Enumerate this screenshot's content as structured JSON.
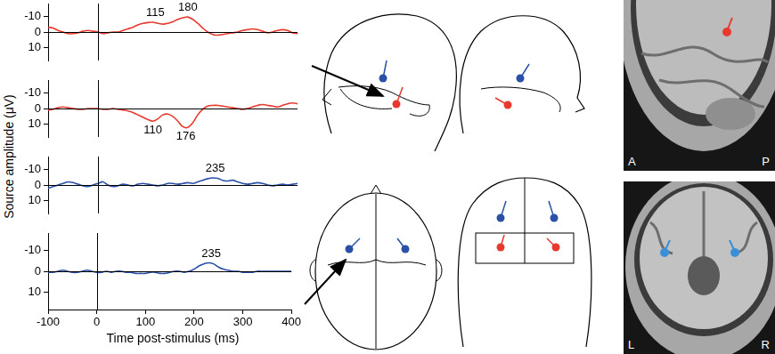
{
  "chart_data": [
    {
      "type": "line",
      "color": "#e8392f",
      "x": [
        -100,
        -90,
        -80,
        -70,
        -60,
        -50,
        -40,
        -30,
        -20,
        -10,
        0,
        10,
        20,
        30,
        40,
        50,
        60,
        70,
        80,
        90,
        100,
        110,
        120,
        130,
        140,
        150,
        160,
        170,
        180,
        190,
        200,
        210,
        220,
        230,
        240,
        250,
        260,
        270,
        280,
        290,
        300,
        310,
        320,
        330,
        340,
        350,
        360,
        370,
        380,
        390,
        400
      ],
      "values": [
        -3,
        -2.5,
        -1,
        0,
        1,
        1,
        0.5,
        -0.5,
        -1,
        -0.5,
        0,
        1,
        0.5,
        0,
        0,
        -1,
        -2,
        -3,
        -4.5,
        -5.5,
        -6,
        -6.2,
        -5.5,
        -5,
        -5.5,
        -6.5,
        -8,
        -9,
        -9.5,
        -8,
        -5.5,
        -2.5,
        0,
        1.5,
        2,
        1.5,
        1,
        0.5,
        0,
        -1,
        -1.5,
        -2,
        -1.5,
        -0.5,
        0.5,
        0,
        -1,
        -1.5,
        -1,
        0.5,
        1
      ],
      "xlim": [
        -100,
        400
      ],
      "xticks": [
        -100,
        0,
        100,
        200,
        300,
        400
      ],
      "ylim": [
        -18,
        18
      ],
      "yticks": [
        -10,
        0,
        10
      ],
      "tick_labels": "y",
      "annotations": [
        {
          "text": "115",
          "x": 115,
          "y": -6.2
        },
        {
          "text": "180",
          "x": 180,
          "y": -9.5
        }
      ]
    },
    {
      "type": "line",
      "color": "#e8392f",
      "x": [
        -100,
        -90,
        -80,
        -70,
        -60,
        -50,
        -40,
        -30,
        -20,
        -10,
        0,
        10,
        20,
        30,
        40,
        50,
        60,
        70,
        80,
        90,
        100,
        110,
        120,
        130,
        140,
        150,
        160,
        170,
        180,
        190,
        200,
        210,
        220,
        230,
        240,
        250,
        260,
        270,
        280,
        290,
        300,
        310,
        320,
        330,
        340,
        350,
        360,
        370,
        380,
        390,
        400
      ],
      "values": [
        1,
        0.5,
        -0.5,
        -1,
        -0.5,
        0,
        0.5,
        0.5,
        0,
        0,
        0,
        0.5,
        0.5,
        0,
        0.5,
        1,
        1.5,
        2.5,
        4,
        5.5,
        7,
        8,
        6.5,
        4,
        3.5,
        5,
        8,
        11.5,
        12,
        9,
        4,
        0.5,
        -1.5,
        -2,
        -2,
        -1.5,
        -1,
        -0.5,
        0,
        0.5,
        0,
        -1,
        -2,
        -2.5,
        -2,
        -1.5,
        -1,
        -2,
        -3,
        -3.5,
        -3
      ],
      "xlim": [
        -100,
        400
      ],
      "xticks": [
        -100,
        0,
        100,
        200,
        300,
        400
      ],
      "ylim": [
        -18,
        18
      ],
      "yticks": [
        -10,
        0,
        10
      ],
      "tick_labels": "y",
      "annotations": [
        {
          "text": "110",
          "x": 110,
          "y": 8
        },
        {
          "text": "176",
          "x": 176,
          "y": 12
        }
      ]
    },
    {
      "type": "line",
      "color": "#2a50a8",
      "x": [
        -100,
        -90,
        -80,
        -70,
        -60,
        -50,
        -40,
        -30,
        -20,
        -10,
        0,
        10,
        20,
        30,
        40,
        50,
        60,
        70,
        80,
        90,
        100,
        110,
        120,
        130,
        140,
        150,
        160,
        170,
        180,
        190,
        200,
        210,
        220,
        230,
        240,
        250,
        260,
        270,
        280,
        290,
        300,
        310,
        320,
        330,
        340,
        350,
        360,
        370,
        380,
        390,
        400
      ],
      "values": [
        2,
        1,
        0,
        -1,
        -2,
        -1.5,
        -0.5,
        0.5,
        1,
        0,
        -1,
        -2,
        0,
        1,
        0.5,
        -0.5,
        0,
        0.5,
        -0.5,
        -1,
        -0.5,
        0,
        0.5,
        0,
        -1,
        -1,
        -0.5,
        -1,
        -1.5,
        -1,
        -2,
        -3,
        -4,
        -4.5,
        -4.2,
        -3,
        -2.5,
        -3,
        -2,
        -1,
        -0.5,
        -1,
        -1.5,
        -1,
        0,
        0.5,
        0,
        -0.5,
        0,
        -0.5,
        -1
      ],
      "xlim": [
        -100,
        400
      ],
      "xticks": [
        -100,
        0,
        100,
        200,
        300,
        400
      ],
      "ylim": [
        -18,
        18
      ],
      "yticks": [
        -10,
        0,
        10
      ],
      "tick_labels": "y",
      "annotations": [
        {
          "text": "235",
          "x": 235,
          "y": -4.5
        }
      ]
    },
    {
      "type": "line",
      "color": "#2a50a8",
      "x": [
        -100,
        -90,
        -80,
        -70,
        -60,
        -50,
        -40,
        -30,
        -20,
        -10,
        0,
        10,
        20,
        30,
        40,
        50,
        60,
        70,
        80,
        90,
        100,
        110,
        120,
        130,
        140,
        150,
        160,
        170,
        180,
        190,
        200,
        210,
        220,
        230,
        240,
        250,
        260,
        270,
        280,
        290,
        300,
        310,
        320,
        330,
        340,
        350,
        360,
        370,
        380,
        390,
        400
      ],
      "values": [
        0.5,
        0.5,
        0,
        -0.5,
        0,
        0.5,
        0.5,
        0,
        -0.5,
        0,
        0.5,
        0.5,
        0,
        0.5,
        0,
        0,
        0.5,
        0.5,
        1,
        1,
        1,
        0.5,
        0.5,
        1,
        1,
        0.5,
        0,
        0,
        0.5,
        0,
        -1,
        -2.5,
        -3.5,
        -4,
        -3.5,
        -2,
        -1,
        -0.5,
        0,
        0,
        0.5,
        0.5,
        0.5,
        0,
        0,
        0,
        0,
        0,
        0,
        0,
        0
      ],
      "xlim": [
        -100,
        400
      ],
      "xticks": [
        -100,
        0,
        100,
        200,
        300,
        400
      ],
      "ylim": [
        -18,
        18
      ],
      "yticks": [
        -10,
        0,
        10
      ],
      "annotations": [
        {
          "text": "235",
          "x": 235,
          "y": -4
        }
      ]
    }
  ],
  "figure": {
    "ylabel": "Source amplitude (μV)",
    "xlabel": "Time post-stimulus (ms)",
    "image_labels": {
      "top_left": "A",
      "top_right": "P",
      "bottom_left": "L",
      "bottom_right": "R"
    }
  }
}
